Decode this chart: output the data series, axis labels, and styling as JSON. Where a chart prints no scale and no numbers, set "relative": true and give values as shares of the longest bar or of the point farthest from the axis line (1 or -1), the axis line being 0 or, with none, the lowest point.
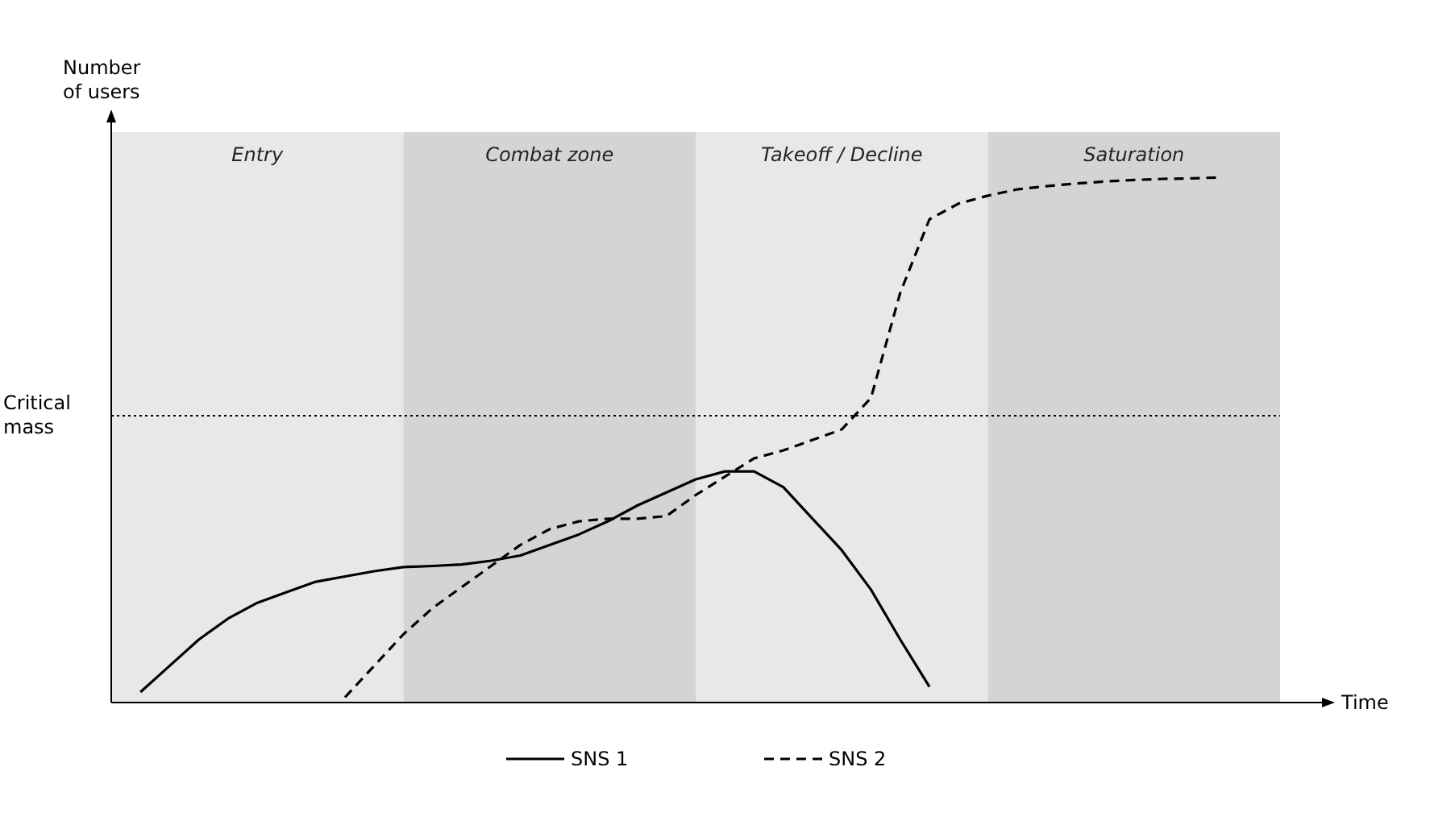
{
  "chart_data": {
    "type": "line",
    "relative": true,
    "xlabel": "Time",
    "ylabel": "Number of users",
    "legend": "bottom",
    "categories": [
      null,
      null,
      null,
      null,
      null,
      null,
      null,
      null,
      null,
      null,
      null,
      null,
      null,
      null,
      null,
      null,
      null,
      null,
      null,
      null,
      null,
      null,
      null,
      null,
      null,
      null,
      null,
      null,
      null,
      null,
      null,
      null,
      null,
      null,
      null,
      null,
      null,
      null,
      null,
      null,
      null
    ],
    "annotations": [
      "Entry",
      "Combat zone",
      "Takeoff / Decline",
      "Saturation"
    ],
    "ref_lines": [
      {
        "axis": "y",
        "value": 0.546,
        "label": "Critical mass",
        "color": "#000000",
        "line_style": "dotted"
      }
    ],
    "series": [
      {
        "name": "SNS 1",
        "color": "#000000",
        "line_style": "solid",
        "values": [
          null,
          0.02,
          0.07,
          0.12,
          0.16,
          0.19,
          0.21,
          0.23,
          0.24,
          0.25,
          0.258,
          0.26,
          0.263,
          0.27,
          0.28,
          0.3,
          0.32,
          0.345,
          0.375,
          0.4,
          0.425,
          0.44,
          0.44,
          0.41,
          0.35,
          0.29,
          0.215,
          0.12,
          0.03,
          null,
          null,
          null,
          null,
          null,
          null,
          null,
          null,
          null,
          null,
          null,
          null
        ]
      },
      {
        "name": "SNS 2",
        "color": "#000000",
        "line_style": "dashed",
        "values": [
          null,
          null,
          null,
          null,
          null,
          null,
          null,
          null,
          0.01,
          0.07,
          0.13,
          0.18,
          0.22,
          0.26,
          0.3,
          0.33,
          0.345,
          0.35,
          0.35,
          0.355,
          0.395,
          0.43,
          0.465,
          0.48,
          0.5,
          0.52,
          0.58,
          0.78,
          0.92,
          0.95,
          0.965,
          0.977,
          0.983,
          0.988,
          0.992,
          0.995,
          0.997,
          0.998,
          1,
          null,
          null
        ]
      }
    ]
  }
}
